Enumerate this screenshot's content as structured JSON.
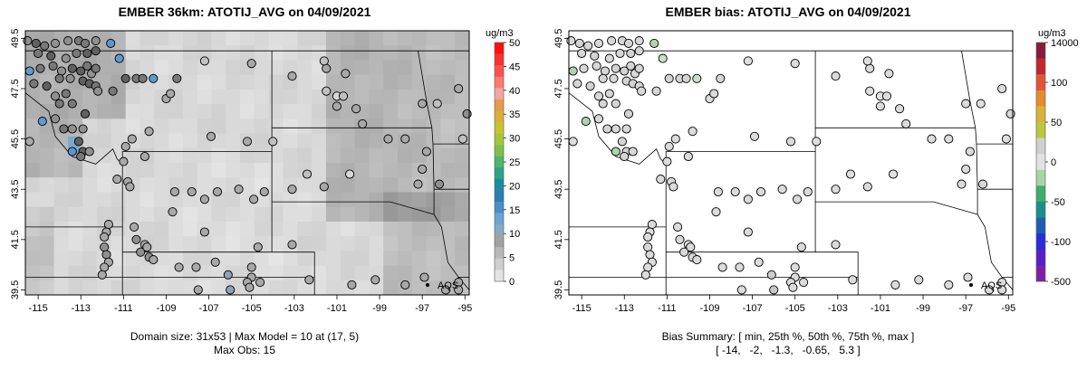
{
  "panels": [
    {
      "title": "EMBER 36km: ATOTIJ_AVG on 04/09/2021",
      "footer": [
        "Domain size: 31x53 | Max Model = 10 at (17, 5)",
        "Max Obs: 15"
      ],
      "legend_title": "ug/m3",
      "legend_ticks": [
        "50",
        "45",
        "40",
        "35",
        "30",
        "25",
        "20",
        "15",
        "10",
        "5",
        "0"
      ],
      "aqs_label": "AQS"
    },
    {
      "title": "EMBER bias: ATOTIJ_AVG on 04/09/2021",
      "footer": [
        "Bias Summary: [ min, 25th %, 50th %, 75th %, max ]",
        "[ -14,   -2,   -1.3,   -0.65,   5.3 ]"
      ],
      "legend_title": "ug/m3",
      "legend_ticks": [
        "14000",
        "100",
        "50",
        "0",
        "-50",
        "-100",
        "-500"
      ],
      "aqs_label": "AQS"
    }
  ],
  "chart_data": [
    {
      "type": "heatmap",
      "title": "EMBER 36km: ATOTIJ_AVG on 04/09/2021",
      "x_tick_labels": [
        "-115",
        "-113",
        "-111",
        "-109",
        "-107",
        "-105",
        "-103",
        "-101",
        "-99",
        "-97",
        "-95"
      ],
      "y_tick_labels": [
        "49.5",
        "47.5",
        "45.5",
        "43.5",
        "41.5",
        "39.5"
      ],
      "xlim": [
        -115.6,
        -94.8
      ],
      "ylim": [
        39.3,
        49.8
      ],
      "colorbar_label": "ug/m3",
      "colorbar_range": [
        0,
        50
      ],
      "grid_size": "31x53",
      "max_model": 10,
      "max_model_location": [
        17,
        5
      ],
      "max_obs": 15
    },
    {
      "type": "scatter",
      "title": "EMBER bias: ATOTIJ_AVG on 04/09/2021",
      "x_tick_labels": [
        "-115",
        "-113",
        "-111",
        "-109",
        "-107",
        "-105",
        "-103",
        "-101",
        "-99",
        "-97",
        "-95"
      ],
      "y_tick_labels": [
        "49.5",
        "47.5",
        "45.5",
        "43.5",
        "41.5",
        "39.5"
      ],
      "xlim": [
        -115.6,
        -94.8
      ],
      "ylim": [
        39.3,
        49.8
      ],
      "colorbar_label": "ug/m3",
      "bias_summary": {
        "min": -14,
        "p25": -2,
        "p50": -1.3,
        "p75": -0.65,
        "max": 5.3
      }
    }
  ],
  "stations": [
    [
      -115.5,
      49.4,
      4
    ],
    [
      -115.1,
      49.3,
      6
    ],
    [
      -114.7,
      49.2,
      5
    ],
    [
      -114.2,
      49.3,
      4
    ],
    [
      -113.6,
      49.4,
      4
    ],
    [
      -113.1,
      49.4,
      5
    ],
    [
      -112.8,
      49.3,
      5
    ],
    [
      -112.3,
      49.4,
      4
    ],
    [
      -111.6,
      49.3,
      14
    ],
    [
      -115.0,
      48.9,
      5
    ],
    [
      -114.4,
      48.8,
      6
    ],
    [
      -113.7,
      48.7,
      4
    ],
    [
      -113.2,
      48.9,
      5
    ],
    [
      -112.7,
      48.9,
      6
    ],
    [
      -112.3,
      49.0,
      6
    ],
    [
      -111.2,
      48.7,
      10
    ],
    [
      -115.4,
      48.2,
      12
    ],
    [
      -114.9,
      48.3,
      5
    ],
    [
      -114.3,
      48.4,
      5
    ],
    [
      -113.9,
      48.2,
      4
    ],
    [
      -113.4,
      48.3,
      6
    ],
    [
      -113.0,
      48.2,
      6
    ],
    [
      -112.7,
      48.4,
      5
    ],
    [
      -112.5,
      48.1,
      4
    ],
    [
      -112.3,
      48.3,
      5
    ],
    [
      -115.2,
      47.7,
      5
    ],
    [
      -114.6,
      47.6,
      6
    ],
    [
      -114.0,
      47.9,
      5
    ],
    [
      -113.5,
      47.9,
      4
    ],
    [
      -112.9,
      47.8,
      6
    ],
    [
      -112.6,
      47.7,
      6
    ],
    [
      -112.3,
      47.6,
      5
    ],
    [
      -114.2,
      47.2,
      4
    ],
    [
      -113.7,
      47.3,
      5
    ],
    [
      -112.2,
      47.4,
      4
    ],
    [
      -111.5,
      47.4,
      5
    ],
    [
      -110.9,
      47.9,
      6
    ],
    [
      -110.4,
      47.9,
      5
    ],
    [
      -110.1,
      47.9,
      5
    ],
    [
      -109.6,
      47.9,
      11
    ],
    [
      -108.5,
      47.9,
      5
    ],
    [
      -114.0,
      46.9,
      5
    ],
    [
      -113.4,
      46.9,
      5
    ],
    [
      -112.8,
      46.5,
      6
    ],
    [
      -114.8,
      46.2,
      12
    ],
    [
      -114.2,
      46.3,
      4
    ],
    [
      -113.8,
      45.9,
      5
    ],
    [
      -113.4,
      45.9,
      4
    ],
    [
      -112.9,
      45.9,
      4
    ],
    [
      -115.4,
      45.4,
      3
    ],
    [
      -113.1,
      45.4,
      6
    ],
    [
      -113.4,
      45.0,
      13
    ],
    [
      -112.9,
      45.0,
      6
    ],
    [
      -112.6,
      45.0,
      4
    ],
    [
      -113.0,
      44.8,
      5
    ],
    [
      -111.0,
      44.6,
      3
    ],
    [
      -109.0,
      47.1,
      3
    ],
    [
      -108.8,
      47.3,
      3
    ],
    [
      -107.2,
      48.6,
      2
    ],
    [
      -105.0,
      48.5,
      3
    ],
    [
      -103.1,
      48.0,
      3
    ],
    [
      -101.5,
      48.3,
      3
    ],
    [
      -101.6,
      48.6,
      2
    ],
    [
      -100.6,
      48.1,
      3
    ],
    [
      -101.5,
      47.4,
      2
    ],
    [
      -101.0,
      47.2,
      1
    ],
    [
      -100.7,
      47.2,
      2
    ],
    [
      -100.1,
      46.7,
      3
    ],
    [
      -101.0,
      46.8,
      3
    ],
    [
      -97.0,
      46.9,
      3
    ],
    [
      -96.3,
      46.9,
      2
    ],
    [
      -95.3,
      47.5,
      3
    ],
    [
      -94.9,
      46.5,
      4
    ],
    [
      -95.1,
      45.5,
      2
    ],
    [
      -97.8,
      45.5,
      3
    ],
    [
      -99.8,
      46.1,
      3
    ],
    [
      -98.6,
      45.5,
      3
    ],
    [
      -96.8,
      45.0,
      3
    ],
    [
      -97.0,
      44.3,
      3
    ],
    [
      -97.2,
      43.7,
      3
    ],
    [
      -96.2,
      43.7,
      4
    ],
    [
      -100.4,
      44.1,
      1
    ],
    [
      -102.4,
      44.1,
      2
    ],
    [
      -103.1,
      43.5,
      3
    ],
    [
      -101.6,
      43.6,
      3
    ],
    [
      -105.2,
      45.4,
      3
    ],
    [
      -104.0,
      45.4,
      2
    ],
    [
      -106.9,
      45.6,
      3
    ],
    [
      -109.8,
      45.8,
      3
    ],
    [
      -110.6,
      45.5,
      3
    ],
    [
      -110.9,
      45.2,
      3
    ],
    [
      -110.0,
      44.8,
      3
    ],
    [
      -111.3,
      43.9,
      3
    ],
    [
      -110.8,
      43.8,
      3
    ],
    [
      -110.7,
      43.6,
      3
    ],
    [
      -108.6,
      43.4,
      3
    ],
    [
      -107.8,
      43.4,
      3
    ],
    [
      -107.2,
      43.1,
      3
    ],
    [
      -106.6,
      43.4,
      3
    ],
    [
      -105.6,
      43.5,
      3
    ],
    [
      -104.9,
      43.1,
      3
    ],
    [
      -104.4,
      43.4,
      3
    ],
    [
      -108.7,
      42.6,
      3
    ],
    [
      -107.2,
      41.8,
      3
    ],
    [
      -104.7,
      41.2,
      3
    ],
    [
      -103.1,
      41.3,
      3
    ],
    [
      -110.5,
      42.0,
      3
    ],
    [
      -110.4,
      41.5,
      4
    ],
    [
      -110.2,
      41.0,
      4
    ],
    [
      -110.0,
      41.3,
      3
    ],
    [
      -109.9,
      41.2,
      3
    ],
    [
      -109.8,
      40.8,
      4
    ],
    [
      -111.7,
      42.1,
      3
    ],
    [
      -111.8,
      41.8,
      3
    ],
    [
      -111.9,
      41.6,
      3
    ],
    [
      -111.9,
      41.2,
      4
    ],
    [
      -111.8,
      40.9,
      4
    ],
    [
      -111.7,
      40.6,
      3
    ],
    [
      -111.9,
      40.4,
      3
    ],
    [
      -112.0,
      40.1,
      3
    ],
    [
      -109.6,
      40.7,
      3
    ],
    [
      -108.4,
      40.4,
      3
    ],
    [
      -107.6,
      40.4,
      3
    ],
    [
      -106.7,
      40.6,
      3
    ],
    [
      -106.1,
      40.1,
      8
    ],
    [
      -105.0,
      40.4,
      3
    ],
    [
      -105.0,
      40.0,
      3
    ],
    [
      -105.2,
      39.8,
      3
    ],
    [
      -105.1,
      39.6,
      3
    ],
    [
      -104.6,
      39.8,
      3
    ],
    [
      -107.5,
      39.5,
      3
    ],
    [
      -106.0,
      39.5,
      9
    ],
    [
      -102.3,
      39.9,
      3
    ],
    [
      -100.3,
      39.7,
      3
    ],
    [
      -99.2,
      39.9,
      3
    ],
    [
      -97.8,
      39.7,
      3
    ],
    [
      -96.9,
      40.0,
      3
    ],
    [
      -95.3,
      39.8,
      3
    ],
    [
      -95.3,
      39.5,
      3
    ],
    [
      -95.9,
      39.5,
      3
    ]
  ]
}
